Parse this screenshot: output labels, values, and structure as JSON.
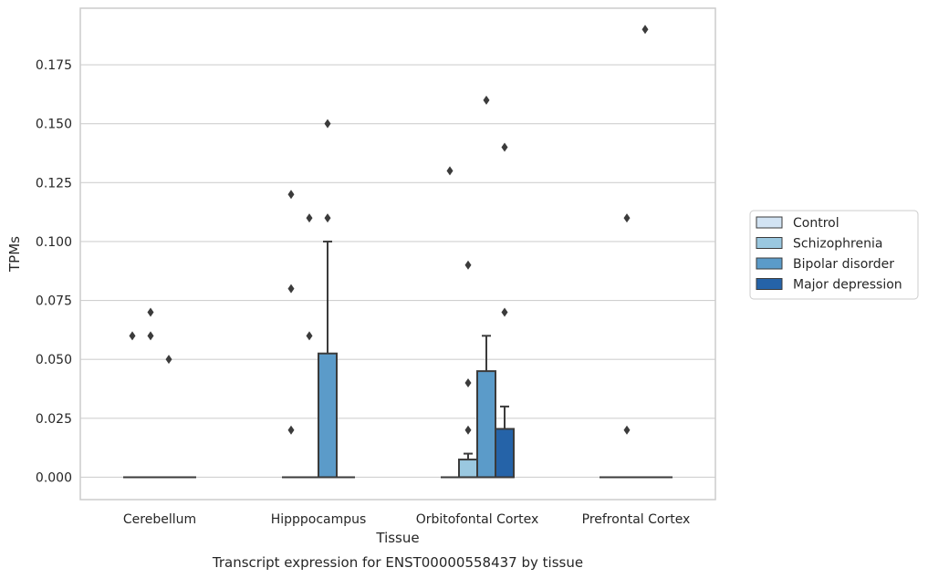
{
  "chart_data": {
    "type": "box",
    "title": "Transcript expression for ENST00000558437 by tissue",
    "xlabel": "Tissue",
    "ylabel": "TPMs",
    "categories": [
      "Cerebellum",
      "Hipppocampus",
      "Orbitofontal Cortex",
      "Prefrontal Cortex"
    ],
    "ylim": [
      -0.0095,
      0.199
    ],
    "yticks": [
      "0.000",
      "0.025",
      "0.050",
      "0.075",
      "0.100",
      "0.125",
      "0.150",
      "0.175"
    ],
    "grid": true,
    "legend_position": "center-right",
    "series": [
      {
        "name": "Control",
        "color": "#d2e3f3",
        "boxes": [
          {
            "q1": 0,
            "median": 0,
            "q3": 0,
            "whisker_low": 0,
            "whisker_high": 0,
            "outliers": [
              0.06
            ]
          },
          {
            "q1": 0,
            "median": 0,
            "q3": 0,
            "whisker_low": 0,
            "whisker_high": 0,
            "outliers": [
              0.02,
              0.08,
              0.12
            ]
          },
          {
            "q1": 0,
            "median": 0,
            "q3": 0,
            "whisker_low": 0,
            "whisker_high": 0,
            "outliers": [
              0.13
            ]
          },
          {
            "q1": 0,
            "median": 0,
            "q3": 0,
            "whisker_low": 0,
            "whisker_high": 0,
            "outliers": []
          }
        ]
      },
      {
        "name": "Schizophrenia",
        "color": "#9ac8e0",
        "boxes": [
          {
            "q1": 0,
            "median": 0,
            "q3": 0,
            "whisker_low": 0,
            "whisker_high": 0,
            "outliers": [
              0.06,
              0.07
            ]
          },
          {
            "q1": 0,
            "median": 0,
            "q3": 0,
            "whisker_low": 0,
            "whisker_high": 0,
            "outliers": [
              0.06,
              0.11
            ]
          },
          {
            "q1": 0,
            "median": 0,
            "q3": 0.0075,
            "whisker_low": 0,
            "whisker_high": 0.01,
            "outliers": [
              0.02,
              0.04,
              0.09
            ]
          },
          {
            "q1": 0,
            "median": 0,
            "q3": 0,
            "whisker_low": 0,
            "whisker_high": 0,
            "outliers": [
              0.02,
              0.11
            ]
          }
        ]
      },
      {
        "name": "Bipolar disorder",
        "color": "#5b9bc9",
        "boxes": [
          {
            "q1": 0,
            "median": 0,
            "q3": 0,
            "whisker_low": 0,
            "whisker_high": 0,
            "outliers": [
              0.05
            ]
          },
          {
            "q1": 0,
            "median": 0,
            "q3": 0.0525,
            "whisker_low": 0,
            "whisker_high": 0.1,
            "outliers": [
              0.11,
              0.15
            ]
          },
          {
            "q1": 0,
            "median": 0,
            "q3": 0.045,
            "whisker_low": 0,
            "whisker_high": 0.06,
            "outliers": [
              0.16
            ]
          },
          {
            "q1": 0,
            "median": 0,
            "q3": 0,
            "whisker_low": 0,
            "whisker_high": 0,
            "outliers": [
              0.19
            ]
          }
        ]
      },
      {
        "name": "Major depression",
        "color": "#2563a8",
        "boxes": [
          {
            "q1": 0,
            "median": 0,
            "q3": 0,
            "whisker_low": 0,
            "whisker_high": 0,
            "outliers": []
          },
          {
            "q1": 0,
            "median": 0,
            "q3": 0,
            "whisker_low": 0,
            "whisker_high": 0,
            "outliers": []
          },
          {
            "q1": 0,
            "median": 0,
            "q3": 0.0205,
            "whisker_low": 0,
            "whisker_high": 0.03,
            "outliers": [
              0.07,
              0.14
            ]
          },
          {
            "q1": 0,
            "median": 0,
            "q3": 0,
            "whisker_low": 0,
            "whisker_high": 0,
            "outliers": []
          }
        ]
      }
    ]
  }
}
